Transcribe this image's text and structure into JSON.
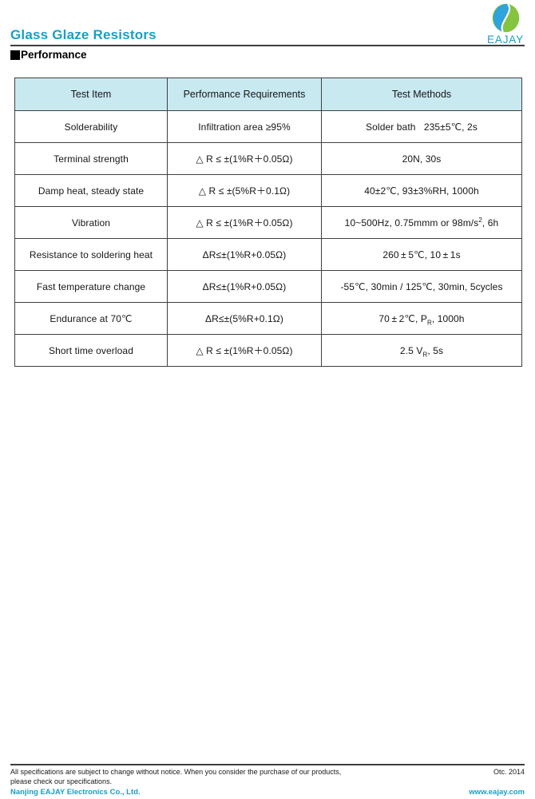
{
  "page": {
    "title": "Glass Glaze Resistors",
    "section_title": "Performance",
    "logo_text": "EAJAY"
  },
  "colors": {
    "accent_teal": "#17a0c4",
    "table_header_bg": "#c9e9f1",
    "logo_blue": "#2fa3dc",
    "logo_green": "#85c440"
  },
  "table": {
    "headers": [
      "Test Item",
      "Performance Requirements",
      "Test Methods"
    ],
    "rows": [
      {
        "item": "Solderability",
        "requirement": "Infiltration area ≥95%",
        "method": [
          {
            "t": "Solder bath   235±5℃, 2s"
          }
        ]
      },
      {
        "item": "Terminal strength",
        "requirement": "△ R ≤ ±(1%R＋0.05Ω)",
        "method": [
          {
            "t": "20N, 30s"
          }
        ]
      },
      {
        "item": "Damp heat, steady state",
        "requirement": "△ R ≤ ±(5%R＋0.1Ω)",
        "method": [
          {
            "t": "40±2℃, 93±3%RH, 1000h"
          }
        ]
      },
      {
        "item": "Vibration",
        "requirement": "△ R ≤ ±(1%R＋0.05Ω)",
        "method": [
          {
            "t": "10~500Hz, 0.75mmm or 98m/s"
          },
          {
            "t": "2",
            "style": "sup"
          },
          {
            "t": ", 6h"
          }
        ]
      },
      {
        "item": "Resistance to soldering heat",
        "requirement": "ΔR≤±(1%R+0.05Ω)",
        "method": [
          {
            "t": "260 ± 5℃, 10 ± 1s"
          }
        ]
      },
      {
        "item": "Fast temperature change",
        "requirement": "ΔR≤±(1%R+0.05Ω)",
        "method": [
          {
            "t": "-55℃, 30min / 125℃, 30min, 5cycles"
          }
        ]
      },
      {
        "item": "Endurance at 70℃",
        "requirement": "ΔR≤±(5%R+0.1Ω)",
        "method": [
          {
            "t": "70 ± 2℃, P"
          },
          {
            "t": "R",
            "style": "sub"
          },
          {
            "t": ", 1000h"
          }
        ]
      },
      {
        "item": "Short time overload",
        "requirement": "△ R ≤ ±(1%R＋0.05Ω)",
        "method": [
          {
            "t": "2.5 V"
          },
          {
            "t": "R",
            "style": "sub"
          },
          {
            "t": ", 5s"
          }
        ]
      }
    ]
  },
  "footer": {
    "disclaimer_line1": "All specifications are subject to change without notice. When you consider the purchase of our products,",
    "disclaimer_line2": "please check our specifications.",
    "company": "Nanjing EAJAY Electronics Co., Ltd.",
    "date": "Otc. 2014",
    "website": "www.eajay.com"
  }
}
